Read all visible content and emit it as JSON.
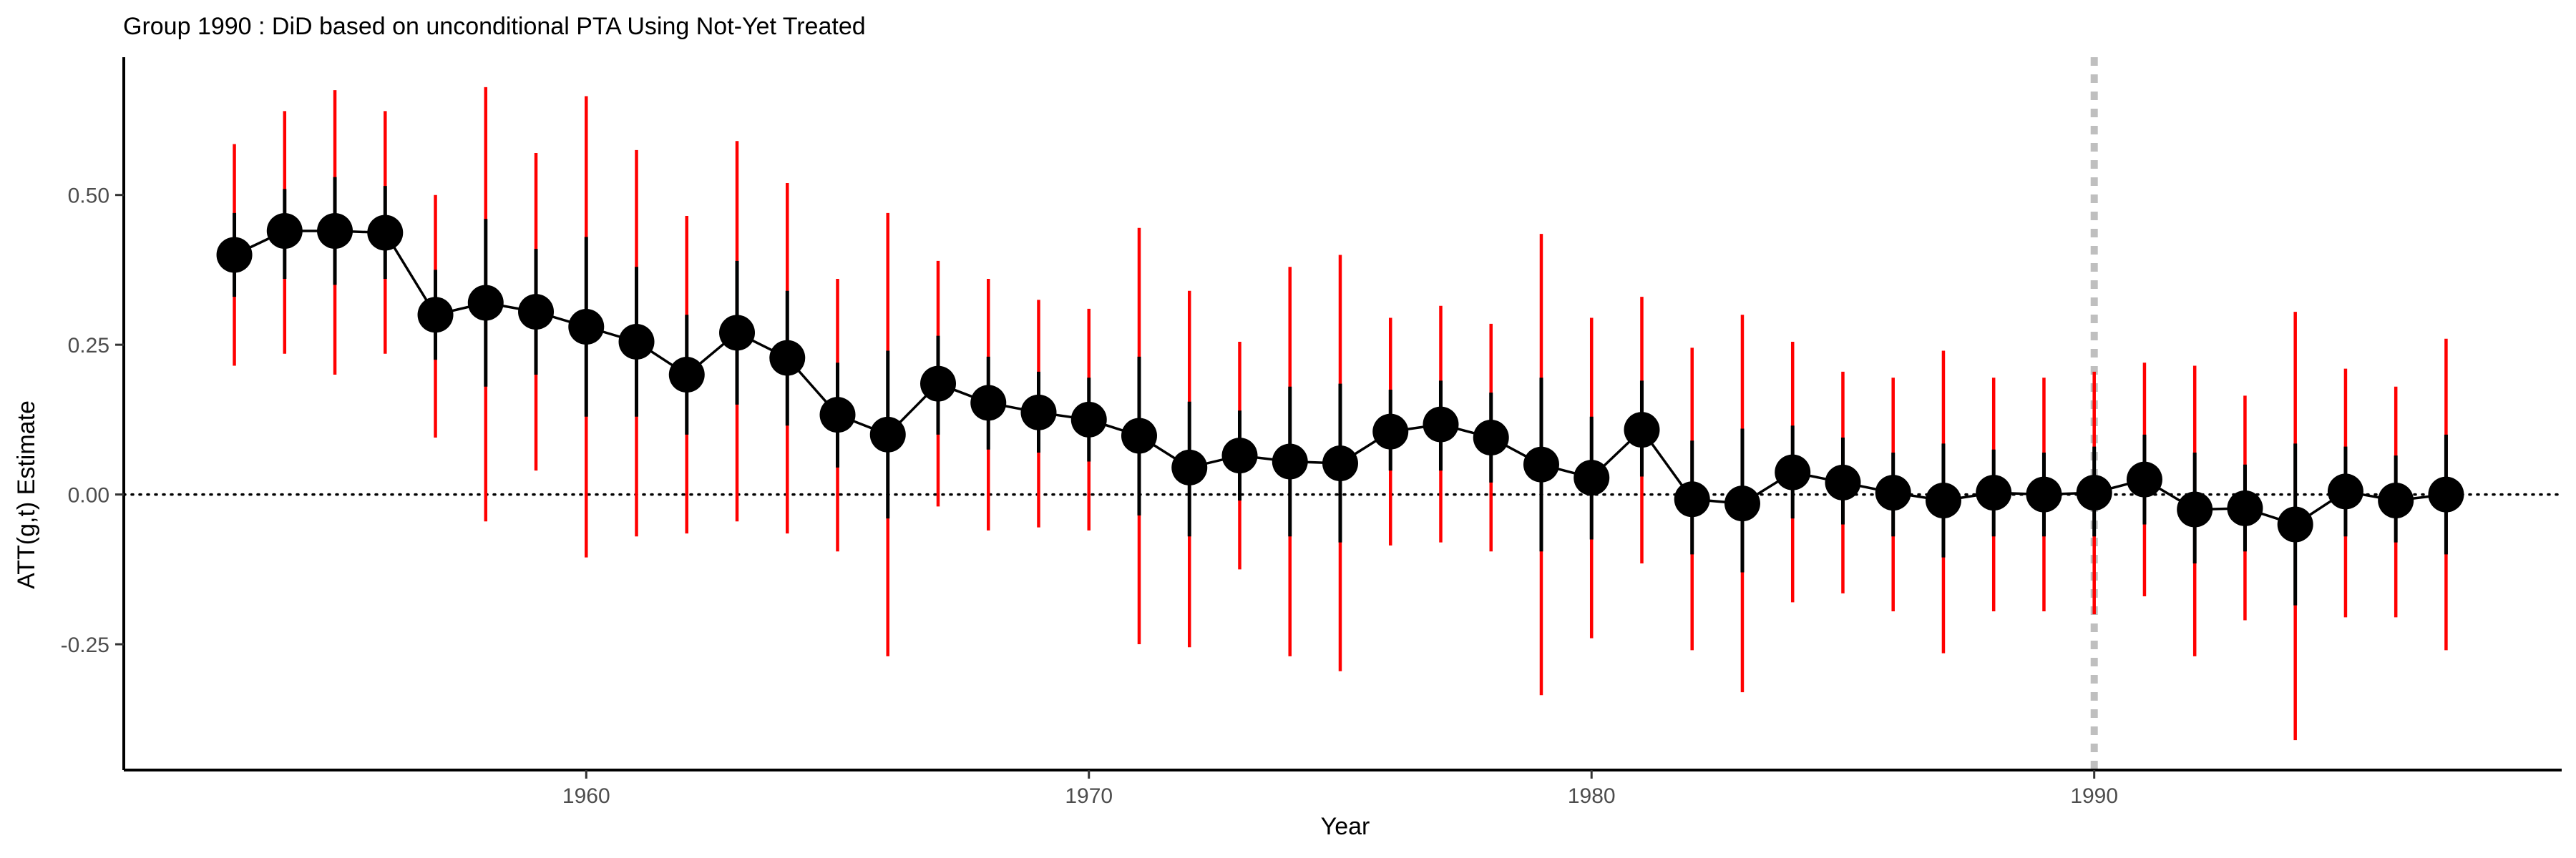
{
  "chart_data": {
    "type": "scatter",
    "title": "Group 1990 : DiD based on unconditional PTA Using Not-Yet Treated",
    "xlabel": "Year",
    "ylabel": "ATT(g,t) Estimate",
    "xlim": [
      1950.8,
      1999.3
    ],
    "ylim": [
      -0.46,
      0.73
    ],
    "x_ticks": [
      1960,
      1970,
      1980,
      1990
    ],
    "x_tick_labels": [
      "1960",
      "1970",
      "1980",
      "1990"
    ],
    "y_ticks": [
      -0.25,
      0,
      0.25,
      0.5
    ],
    "y_tick_labels": [
      "-0.25",
      "0.00",
      "0.25",
      "0.50"
    ],
    "reference_line_y": 0,
    "treatment_year": 1990,
    "grid": false,
    "colors": {
      "point": "#000000",
      "line": "#000000",
      "pointwise_ci": "#000000",
      "uniform_ci": "#ff0000",
      "zero_line": "#000000",
      "treatment_line": "#bfbfbf"
    },
    "series": [
      {
        "x": [
          1953,
          1954,
          1955,
          1956,
          1957,
          1958,
          1959,
          1960,
          1961,
          1962,
          1963,
          1964,
          1965,
          1966,
          1967,
          1968,
          1969,
          1970,
          1971,
          1972,
          1973,
          1974,
          1975,
          1976,
          1977,
          1978,
          1979,
          1980,
          1981,
          1982,
          1983,
          1984,
          1985,
          1986,
          1987,
          1988,
          1989,
          1990,
          1991,
          1992,
          1993,
          1994,
          1995,
          1996,
          1997
        ],
        "y": [
          0.4,
          0.44,
          0.44,
          0.437,
          0.3,
          0.32,
          0.305,
          0.28,
          0.255,
          0.2,
          0.27,
          0.228,
          0.133,
          0.1,
          0.185,
          0.153,
          0.137,
          0.125,
          0.098,
          0.045,
          0.065,
          0.055,
          0.052,
          0.105,
          0.117,
          0.095,
          0.05,
          0.028,
          0.108,
          -0.008,
          -0.015,
          0.037,
          0.02,
          0.003,
          -0.01,
          0.003,
          0.0,
          0.003,
          0.025,
          -0.025,
          -0.023,
          -0.05,
          0.005,
          -0.01,
          0.0
        ],
        "ci_low": [
          0.33,
          0.36,
          0.35,
          0.36,
          0.225,
          0.18,
          0.2,
          0.13,
          0.13,
          0.1,
          0.15,
          0.115,
          0.045,
          -0.04,
          0.1,
          0.075,
          0.07,
          0.055,
          -0.035,
          -0.07,
          -0.01,
          -0.07,
          -0.08,
          0.04,
          0.04,
          0.02,
          -0.095,
          -0.075,
          0.03,
          -0.1,
          -0.13,
          -0.04,
          -0.05,
          -0.07,
          -0.105,
          -0.07,
          -0.07,
          -0.07,
          -0.05,
          -0.115,
          -0.095,
          -0.185,
          -0.07,
          -0.08,
          -0.1
        ],
        "ci_high": [
          0.47,
          0.51,
          0.53,
          0.515,
          0.375,
          0.46,
          0.41,
          0.43,
          0.38,
          0.3,
          0.39,
          0.34,
          0.22,
          0.24,
          0.265,
          0.23,
          0.205,
          0.195,
          0.23,
          0.155,
          0.14,
          0.18,
          0.185,
          0.175,
          0.19,
          0.17,
          0.195,
          0.13,
          0.19,
          0.09,
          0.11,
          0.115,
          0.095,
          0.07,
          0.085,
          0.075,
          0.07,
          0.08,
          0.1,
          0.07,
          0.05,
          0.085,
          0.08,
          0.065,
          0.1
        ],
        "band_low": [
          0.215,
          0.235,
          0.2,
          0.235,
          0.095,
          -0.045,
          0.04,
          -0.105,
          -0.07,
          -0.065,
          -0.045,
          -0.065,
          -0.095,
          -0.27,
          -0.02,
          -0.06,
          -0.055,
          -0.06,
          -0.25,
          -0.255,
          -0.125,
          -0.27,
          -0.295,
          -0.085,
          -0.08,
          -0.095,
          -0.335,
          -0.24,
          -0.115,
          -0.26,
          -0.33,
          -0.18,
          -0.165,
          -0.195,
          -0.265,
          -0.195,
          -0.195,
          -0.2,
          -0.17,
          -0.27,
          -0.21,
          -0.41,
          -0.205,
          -0.205,
          -0.26
        ],
        "band_high": [
          0.585,
          0.64,
          0.675,
          0.64,
          0.5,
          0.68,
          0.57,
          0.665,
          0.575,
          0.465,
          0.59,
          0.52,
          0.36,
          0.47,
          0.39,
          0.36,
          0.325,
          0.31,
          0.445,
          0.34,
          0.255,
          0.38,
          0.4,
          0.295,
          0.315,
          0.285,
          0.435,
          0.295,
          0.33,
          0.245,
          0.3,
          0.255,
          0.205,
          0.195,
          0.24,
          0.195,
          0.195,
          0.205,
          0.22,
          0.215,
          0.165,
          0.305,
          0.21,
          0.18,
          0.26
        ]
      }
    ]
  }
}
